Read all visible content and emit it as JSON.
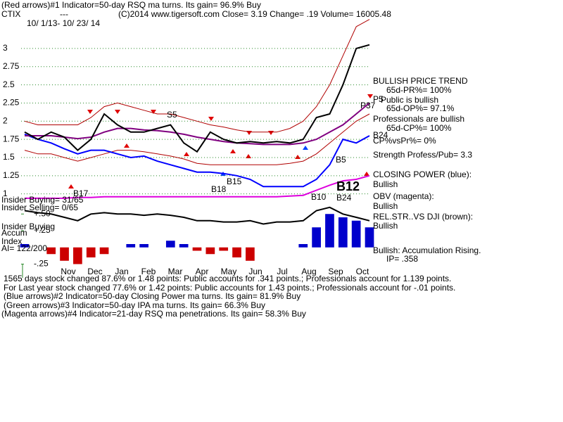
{
  "chart_data": [
    {
      "type": "line",
      "ylim": [
        0.9,
        3.45
      ],
      "yticks": [
        1,
        1.25,
        1.5,
        1.75,
        2,
        2.25,
        2.5,
        2.75,
        3
      ],
      "grid": true,
      "x_labels": [
        "Nov",
        "Dec",
        "Jan",
        "Feb",
        "Mar",
        "Apr",
        "May",
        "Jun",
        "Jul",
        "Aug",
        "Sep",
        "Oct"
      ],
      "series": [
        {
          "color": "#b00000",
          "values": [
            2.0,
            1.95,
            1.95,
            1.95,
            1.95,
            2.05,
            2.2,
            2.25,
            2.2,
            2.15,
            2.1,
            2.1,
            2.05,
            2.0,
            1.95,
            1.92,
            1.88,
            1.85,
            1.85,
            1.85,
            1.9,
            2.0,
            2.2,
            2.5,
            2.9,
            3.3,
            3.4
          ]
        },
        {
          "color": "#b00000",
          "values": [
            1.6,
            1.55,
            1.55,
            1.5,
            1.45,
            1.5,
            1.55,
            1.6,
            1.6,
            1.58,
            1.55,
            1.52,
            1.48,
            1.42,
            1.4,
            1.4,
            1.4,
            1.4,
            1.4,
            1.4,
            1.42,
            1.45,
            1.55,
            1.7,
            1.85,
            2.0,
            2.1
          ]
        },
        {
          "color": "#0000ff",
          "values": [
            1.82,
            1.75,
            1.7,
            1.62,
            1.55,
            1.6,
            1.6,
            1.55,
            1.5,
            1.52,
            1.45,
            1.4,
            1.35,
            1.3,
            1.3,
            1.28,
            1.25,
            1.2,
            1.1,
            1.1,
            1.1,
            1.1,
            1.2,
            1.4,
            1.75,
            1.7,
            1.8
          ]
        },
        {
          "color": "#dd00dd",
          "values": [
            0.94,
            0.94,
            0.94,
            0.94,
            0.95,
            0.95,
            0.96,
            0.96,
            0.96,
            0.96,
            0.96,
            0.96,
            0.96,
            0.96,
            0.96,
            0.96,
            0.96,
            0.96,
            0.96,
            0.96,
            0.97,
            0.98,
            1.05,
            1.12,
            1.18,
            1.2,
            1.25
          ]
        },
        {
          "color": "#800080",
          "values": [
            1.8,
            1.8,
            1.8,
            1.78,
            1.76,
            1.78,
            1.85,
            1.9,
            1.9,
            1.88,
            1.87,
            1.85,
            1.82,
            1.78,
            1.75,
            1.72,
            1.7,
            1.69,
            1.68,
            1.68,
            1.68,
            1.7,
            1.75,
            1.85,
            1.95,
            2.1,
            2.25
          ]
        },
        {
          "color": "#000000",
          "values": [
            1.85,
            1.75,
            1.85,
            1.78,
            1.6,
            1.75,
            2.1,
            1.95,
            1.85,
            1.85,
            1.9,
            1.95,
            1.7,
            1.58,
            1.85,
            1.75,
            1.7,
            1.72,
            1.7,
            1.72,
            1.7,
            1.75,
            2.05,
            2.1,
            2.5,
            3.0,
            3.05
          ]
        }
      ]
    },
    {
      "type": "bar",
      "ylim": [
        -0.35,
        0.65
      ],
      "yticks": [
        {
          "value": 0.5,
          "label": "+.50"
        },
        {
          "value": 0.25,
          "label": "+.25"
        },
        {
          "value": -0.25,
          "label": "-.25"
        }
      ],
      "pos_color": "#0000cc",
      "neg_color": "#cc0000",
      "values": [
        0.05,
        0.0,
        -0.1,
        -0.2,
        -0.25,
        -0.15,
        -0.1,
        0.0,
        0.05,
        0.05,
        0.0,
        0.1,
        0.05,
        -0.05,
        -0.1,
        -0.05,
        -0.15,
        -0.2,
        0.0,
        0.0,
        0.0,
        0.05,
        0.3,
        0.5,
        0.45,
        0.4,
        0.3
      ],
      "line": {
        "color": "#000000",
        "values": [
          0.55,
          0.52,
          0.5,
          0.45,
          0.4,
          0.5,
          0.52,
          0.5,
          0.5,
          0.48,
          0.5,
          0.48,
          0.45,
          0.4,
          0.4,
          0.38,
          0.38,
          0.4,
          0.35,
          0.38,
          0.38,
          0.4,
          0.55,
          0.6,
          0.5,
          0.45,
          0.4
        ]
      }
    }
  ],
  "annotations": [
    "(Red arrows)#1 Indicator=50-day RSQ ma turns. Its gain= 96.9% Buy",
    "CTIX",
    "---",
    "(C)2014 www.tigersoft.com    Close=   3.19  Change= .19 Volume= 16005.48",
    "10/ 1/13- 10/ 23/ 14",
    "BULLISH PRICE TREND",
    "65d-PR%= 100%",
    "Public is bullish",
    "65d-OP%= 97.1%",
    "Professionals are bullish",
    "65d-CP%= 100%",
    "CP%vsPr%=  0%",
    "Strength Profess/Pub= 3.3",
    "CLOSING POWER (blue):",
    "Bullish",
    "OBV (magenta):",
    "Bullish",
    "REL.STR..VS DJI (brown):",
    "Bullish",
    "Bullish: Accumulation Rising.",
    "IP=  .358",
    "S5",
    "B24",
    "P5",
    "P37",
    "B5",
    "B17",
    "B18",
    "B15",
    "B10",
    "B24",
    "B12",
    "Insider Buying= 31/65",
    "Insider Selling= 0/65",
    "Insider Buying",
    "Accum",
    "Index",
    "AI= 122/200",
    "1565 days stock changed  87.6% or  1.48 points:  Public accounts for  .341 points.;  Professionals account for  1.139 points.",
    "For Last year stock changed  77.6% or  1.42 points:  Public accounts for  1.43 points.;  Professionals account for -.01 points.",
    "(Blue arrows)#2 Indicator=50-day Closing Power ma turns. Its gain= 81.9% Buy",
    "(Green arrows)#3 Indicator=50-day IPA ma turns. Its gain= 66.3% Buy",
    "(Magenta arrows)#4 Indicator=21-day RSQ ma penetrations. Its gain= 58.3% Buy"
  ]
}
